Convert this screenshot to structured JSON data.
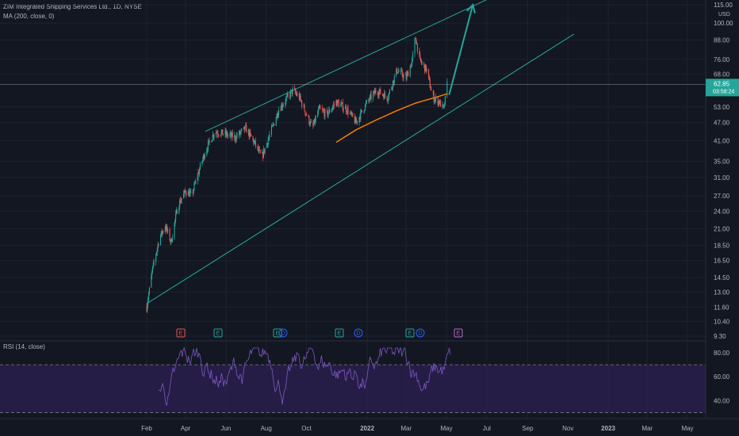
{
  "header": {
    "title": "ZIM Integrated Shipping Services Ltd., 1D, NYSE",
    "indicator": "MA (200, close, 0)"
  },
  "price_axis": {
    "currency": "USD",
    "ticks": [
      "115.00",
      "100.00",
      "88.00",
      "76.00",
      "68.00",
      "53.00",
      "47.00",
      "41.00",
      "35.00",
      "31.00",
      "27.00",
      "24.00",
      "21.00",
      "18.50",
      "16.50",
      "14.50",
      "13.00",
      "11.60",
      "10.40",
      "9.30"
    ],
    "last_price": "62.85",
    "countdown": "03:58:24"
  },
  "time_axis": {
    "labels": [
      "Feb",
      "Apr",
      "Jun",
      "Aug",
      "Oct",
      "2022",
      "Mar",
      "May",
      "Jul",
      "Sep",
      "Nov",
      "2023",
      "Mar",
      "May"
    ]
  },
  "events": [
    "E",
    "E",
    "E",
    "D",
    "E",
    "D",
    "E",
    "D",
    "E"
  ],
  "rsi": {
    "label": "RSI (14, close)",
    "ticks": [
      "80.00",
      "60.00",
      "40.00"
    ]
  },
  "colors": {
    "background": "#131722",
    "up": "#26a69a",
    "down": "#ef5350",
    "trendline": "#26a69a",
    "ma": "#f57c00",
    "rsi_line": "#7e57c2",
    "rsi_band": "#2a1f4e",
    "price_label": "#26a69a"
  },
  "chart_data": {
    "type": "candlestick",
    "scale": "log",
    "symbol": "ZIM",
    "interval": "1D",
    "ylim": [
      9.3,
      115
    ],
    "price_path": [
      [
        "2021-02-01",
        11.6
      ],
      [
        "2021-02-10",
        15.5
      ],
      [
        "2021-02-20",
        19.5
      ],
      [
        "2021-03-01",
        21.5
      ],
      [
        "2021-03-10",
        19.0
      ],
      [
        "2021-03-20",
        25.0
      ],
      [
        "2021-04-01",
        28.0
      ],
      [
        "2021-04-10",
        27.0
      ],
      [
        "2021-04-20",
        32.0
      ],
      [
        "2021-05-01",
        38.0
      ],
      [
        "2021-05-15",
        44.0
      ],
      [
        "2021-06-01",
        43.0
      ],
      [
        "2021-06-15",
        42.0
      ],
      [
        "2021-07-01",
        45.0
      ],
      [
        "2021-07-15",
        40.0
      ],
      [
        "2021-07-25",
        36.0
      ],
      [
        "2021-08-05",
        42.0
      ],
      [
        "2021-08-20",
        52.0
      ],
      [
        "2021-09-10",
        60.0
      ],
      [
        "2021-09-20",
        57.0
      ],
      [
        "2021-10-01",
        50.0
      ],
      [
        "2021-10-10",
        45.0
      ],
      [
        "2021-10-20",
        52.0
      ],
      [
        "2021-11-01",
        50.0
      ],
      [
        "2021-11-15",
        55.0
      ],
      [
        "2021-12-01",
        52.0
      ],
      [
        "2021-12-15",
        47.0
      ],
      [
        "2022-01-01",
        55.0
      ],
      [
        "2022-01-15",
        60.0
      ],
      [
        "2022-02-01",
        57.0
      ],
      [
        "2022-02-15",
        70.0
      ],
      [
        "2022-03-01",
        66.0
      ],
      [
        "2022-03-10",
        75.0
      ],
      [
        "2022-03-15",
        90.0
      ],
      [
        "2022-03-22",
        75.0
      ],
      [
        "2022-04-01",
        70.0
      ],
      [
        "2022-04-10",
        57.0
      ],
      [
        "2022-04-20",
        55.0
      ],
      [
        "2022-04-27",
        52.0
      ],
      [
        "2022-05-02",
        62.85
      ]
    ],
    "ma200": [
      [
        "2021-11-15",
        40.5
      ],
      [
        "2021-12-15",
        44.5
      ],
      [
        "2022-01-15",
        48.0
      ],
      [
        "2022-02-15",
        51.5
      ],
      [
        "2022-03-15",
        54.5
      ],
      [
        "2022-04-15",
        57.0
      ],
      [
        "2022-05-02",
        58.5
      ]
    ],
    "channel_upper": [
      [
        "2021-05-01",
        44.0
      ],
      [
        "2022-07-20",
        125.0
      ]
    ],
    "channel_lower": [
      [
        "2021-02-01",
        11.9
      ],
      [
        "2022-11-10",
        92.0
      ]
    ],
    "projection_arrow": [
      [
        "2022-05-05",
        58.0
      ],
      [
        "2022-06-10",
        115.0
      ]
    ],
    "rsi_band": [
      30,
      70
    ],
    "rsi_ylim": [
      25,
      90
    ]
  }
}
